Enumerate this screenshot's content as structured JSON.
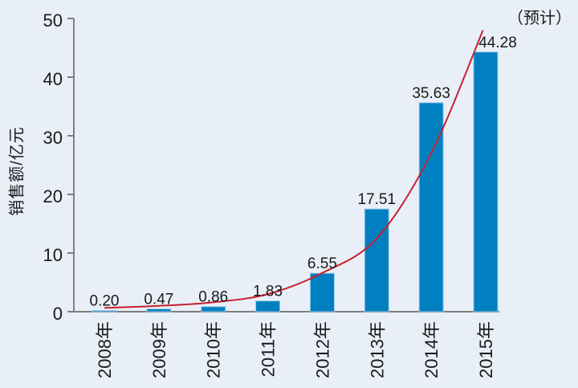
{
  "chart_data": {
    "type": "bar",
    "title": "",
    "annotation": "（预计）",
    "ylabel": "销售额/亿元",
    "xlabel": "",
    "categories": [
      "2008年",
      "2009年",
      "2010年",
      "2011年",
      "2012年",
      "2013年",
      "2014年",
      "2015年"
    ],
    "values": [
      0.2,
      0.47,
      0.86,
      1.83,
      6.55,
      17.51,
      35.63,
      44.28
    ],
    "value_labels": [
      "0.20",
      "0.47",
      "0.86",
      "1.83",
      "6.55",
      "17.51",
      "35.63",
      "44.28"
    ],
    "y_ticks": [
      0,
      10,
      20,
      30,
      40,
      50
    ],
    "ylim": [
      0,
      50
    ],
    "grid": false,
    "legend_position": "none",
    "series": [
      {
        "name": "销售额",
        "type": "bar",
        "values": [
          0.2,
          0.47,
          0.86,
          1.83,
          6.55,
          17.51,
          35.63,
          44.28
        ]
      },
      {
        "name": "趋势线",
        "type": "line",
        "points": [
          [
            0,
            0.65
          ],
          [
            1,
            1.0
          ],
          [
            2,
            1.6
          ],
          [
            3,
            3.0
          ],
          [
            4,
            6.6
          ],
          [
            5,
            12.5
          ],
          [
            6,
            27
          ],
          [
            6.95,
            48
          ]
        ]
      }
    ],
    "colors": {
      "bar": "#0080c0",
      "bar_edge": "#9cc7e6",
      "trend_line": "#c8202f",
      "axis": "#7f7f7f",
      "text": "#1a1a1a",
      "background": "#e9eff7"
    }
  }
}
